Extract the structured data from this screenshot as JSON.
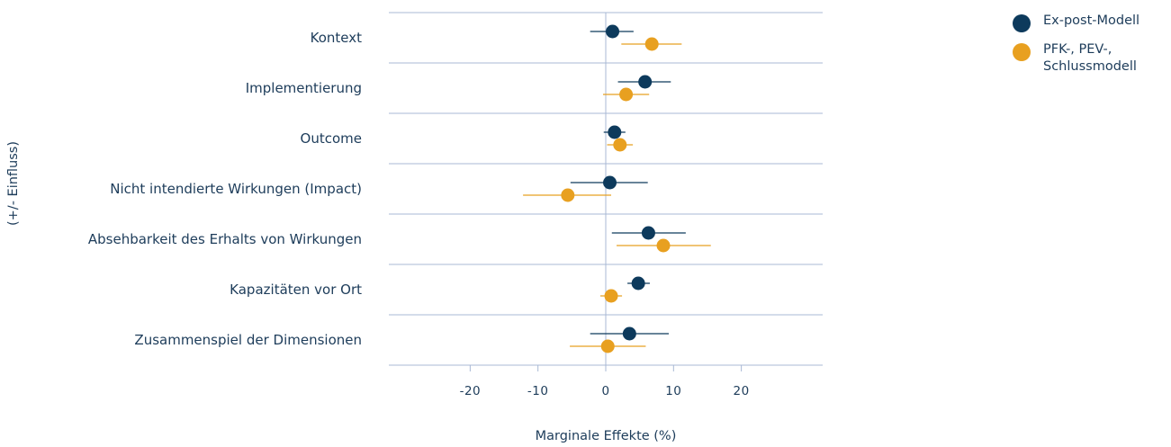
{
  "chart_data": {
    "type": "scatter",
    "orientation": "horizontal-dot-whisker",
    "categories": [
      "Kontext",
      "Implementierung",
      "Outcome",
      "Nicht intendierte Wirkungen (Impact)",
      "Absehbarkeit des Erhalts von Wirkungen",
      "Kapazitäten vor Ort",
      "Zusammenspiel der Dimensionen"
    ],
    "series": [
      {
        "name": "Ex-post-Modell",
        "color": "#0d3a5c",
        "estimates": [
          1.0,
          5.8,
          1.3,
          0.6,
          6.3,
          4.8,
          3.5
        ],
        "ci_low": [
          -2.3,
          1.8,
          -0.3,
          -5.2,
          0.9,
          3.2,
          -2.3
        ],
        "ci_high": [
          4.1,
          9.6,
          2.9,
          6.2,
          11.8,
          6.5,
          9.3
        ]
      },
      {
        "name": "PFK-, PEV-, Schlussmodell",
        "color": "#e8a020",
        "estimates": [
          6.8,
          3.0,
          2.1,
          -5.6,
          8.5,
          0.8,
          0.3
        ],
        "ci_low": [
          2.3,
          -0.4,
          0.2,
          -12.2,
          1.6,
          -0.8,
          -5.3
        ],
        "ci_high": [
          11.2,
          6.4,
          4.0,
          0.8,
          15.5,
          2.4,
          5.9
        ]
      }
    ],
    "xlabel": "Marginale Effekte (%)",
    "ylabel": "(+/- Einfluss)",
    "xlim": [
      -32,
      32
    ],
    "xticks": [
      -20,
      -10,
      0,
      10,
      20
    ],
    "xtick_labels": [
      "-20",
      "-10",
      "0",
      "10",
      "20"
    ],
    "grid": "horizontal separators",
    "legend_position": "top-right"
  },
  "legend": {
    "items": [
      {
        "lines": [
          "Ex-post-Modell"
        ],
        "color": "#0d3a5c"
      },
      {
        "lines": [
          "PFK-, PEV-,",
          "Schlussmodell"
        ],
        "color": "#e8a020"
      }
    ]
  }
}
